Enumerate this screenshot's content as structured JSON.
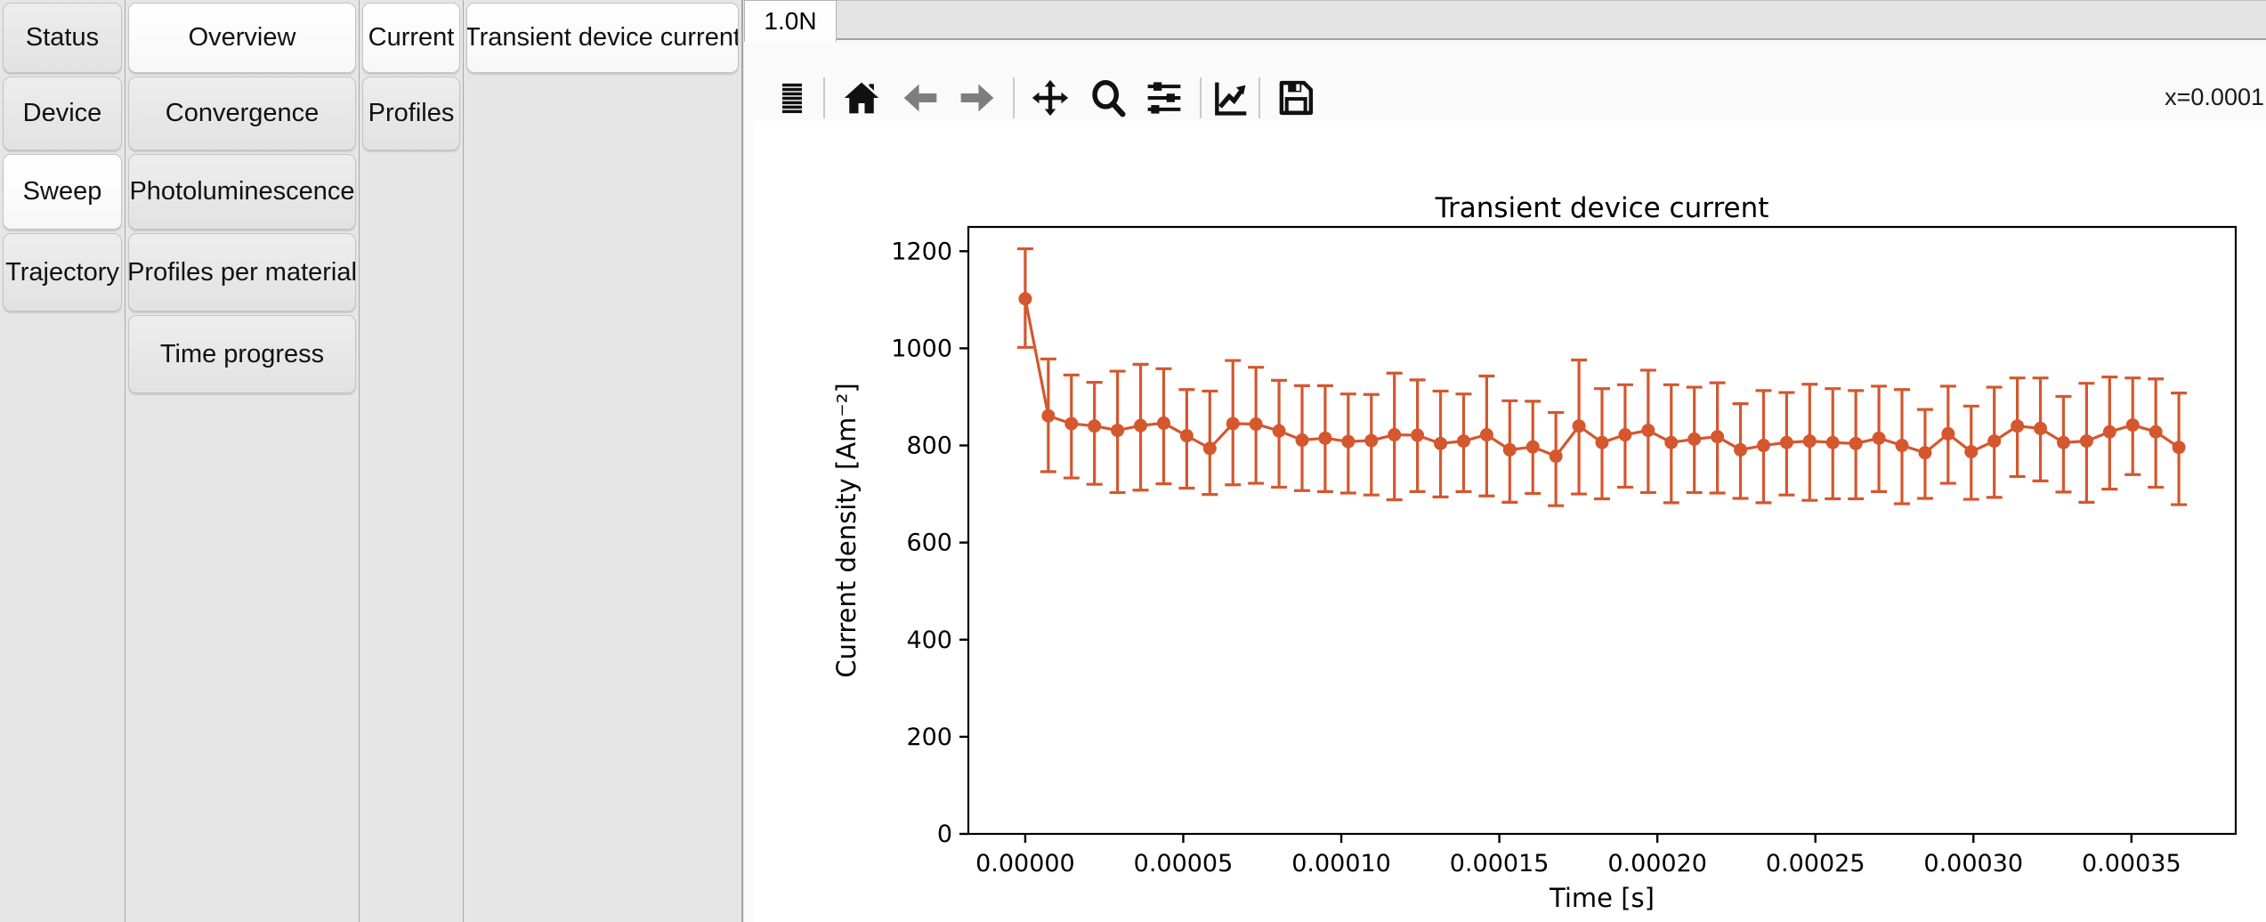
{
  "sidebar": {
    "columns": [
      {
        "tabs": [
          {
            "label": "Status",
            "selected": false
          },
          {
            "label": "Device",
            "selected": false
          },
          {
            "label": "Sweep",
            "selected": true
          },
          {
            "label": "Trajectory",
            "selected": false
          }
        ]
      },
      {
        "tabs": [
          {
            "label": "Overview",
            "selected": true
          },
          {
            "label": "Convergence",
            "selected": false
          },
          {
            "label": "Photoluminescence",
            "selected": false
          },
          {
            "label": "Profiles per material",
            "selected": false
          },
          {
            "label": "Time progress",
            "selected": false
          }
        ]
      },
      {
        "tabs": [
          {
            "label": "Current",
            "selected": true
          },
          {
            "label": "Profiles",
            "selected": false
          }
        ]
      },
      {
        "tabs": [
          {
            "label": "Transient device current",
            "selected": true
          }
        ]
      }
    ]
  },
  "tabbar": {
    "active_tab": "1.0N"
  },
  "toolbar": {
    "icons": [
      "list-icon",
      "home-icon",
      "back-icon",
      "forward-icon",
      "pan-icon",
      "zoom-icon",
      "subplots-icon",
      "customize-icon",
      "save-icon"
    ],
    "cursor_readout": "x=0.0001"
  },
  "chart_data": {
    "type": "line",
    "title": "Transient device current",
    "xlabel": "Time [s]",
    "ylabel": "Current density [Am⁻²]",
    "color": "#d4572e",
    "grid": false,
    "xlim": [
      -1.8e-05,
      0.000383
    ],
    "ylim": [
      0,
      1250
    ],
    "xticks": {
      "values": [
        0,
        5e-05,
        0.0001,
        0.00015,
        0.0002,
        0.00025,
        0.0003,
        0.00035
      ],
      "labels": [
        "0.00000",
        "0.00005",
        "0.00010",
        "0.00015",
        "0.00020",
        "0.00025",
        "0.00030",
        "0.00035"
      ]
    },
    "yticks": {
      "values": [
        0,
        200,
        400,
        600,
        800,
        1000,
        1200
      ],
      "labels": [
        "0",
        "200",
        "400",
        "600",
        "800",
        "1000",
        "1200"
      ]
    },
    "series": [
      {
        "name": "transient device current",
        "x": [
          0,
          7.3e-06,
          1.46e-05,
          2.19e-05,
          2.92e-05,
          3.65e-05,
          4.38e-05,
          5.11e-05,
          5.84e-05,
          6.57e-05,
          7.3e-05,
          8.03e-05,
          8.76e-05,
          9.49e-05,
          0.0001022,
          0.0001095,
          0.0001168,
          0.0001241,
          0.0001314,
          0.0001387,
          0.000146,
          0.0001533,
          0.0001606,
          0.0001679,
          0.0001752,
          0.0001825,
          0.0001898,
          0.0001971,
          0.0002044,
          0.0002117,
          0.000219,
          0.0002263,
          0.0002336,
          0.0002409,
          0.0002482,
          0.0002555,
          0.0002628,
          0.0002701,
          0.0002774,
          0.0002847,
          0.000292,
          0.0002993,
          0.0003066,
          0.0003139,
          0.0003212,
          0.0003285,
          0.0003358,
          0.0003431,
          0.0003504,
          0.0003577,
          0.000365
        ],
        "y": [
          1102,
          861,
          845,
          840,
          831,
          841,
          846,
          820,
          794,
          845,
          844,
          830,
          811,
          815,
          808,
          810,
          822,
          821,
          804,
          809,
          822,
          791,
          797,
          778,
          840,
          806,
          822,
          831,
          806,
          813,
          818,
          791,
          800,
          806,
          809,
          806,
          804,
          815,
          800,
          785,
          824,
          787,
          809,
          840,
          835,
          806,
          809,
          828,
          842,
          828,
          796
        ],
        "err_up": [
          103,
          117,
          100,
          90,
          122,
          126,
          112,
          95,
          118,
          130,
          117,
          104,
          112,
          108,
          98,
          95,
          127,
          114,
          108,
          97,
          121,
          101,
          94,
          90,
          136,
          111,
          103,
          124,
          119,
          107,
          111,
          95,
          113,
          103,
          117,
          111,
          109,
          107,
          115,
          89,
          98,
          94,
          111,
          99,
          104,
          95,
          119,
          113,
          97,
          109,
          112
        ],
        "err_down": [
          100,
          115,
          112,
          120,
          128,
          133,
          125,
          108,
          95,
          126,
          122,
          116,
          104,
          110,
          106,
          112,
          134,
          116,
          110,
          104,
          126,
          108,
          96,
          102,
          140,
          116,
          108,
          128,
          124,
          110,
          116,
          100,
          118,
          108,
          122,
          116,
          114,
          110,
          120,
          94,
          102,
          98,
          116,
          104,
          108,
          102,
          126,
          118,
          102,
          114,
          118
        ]
      }
    ]
  }
}
